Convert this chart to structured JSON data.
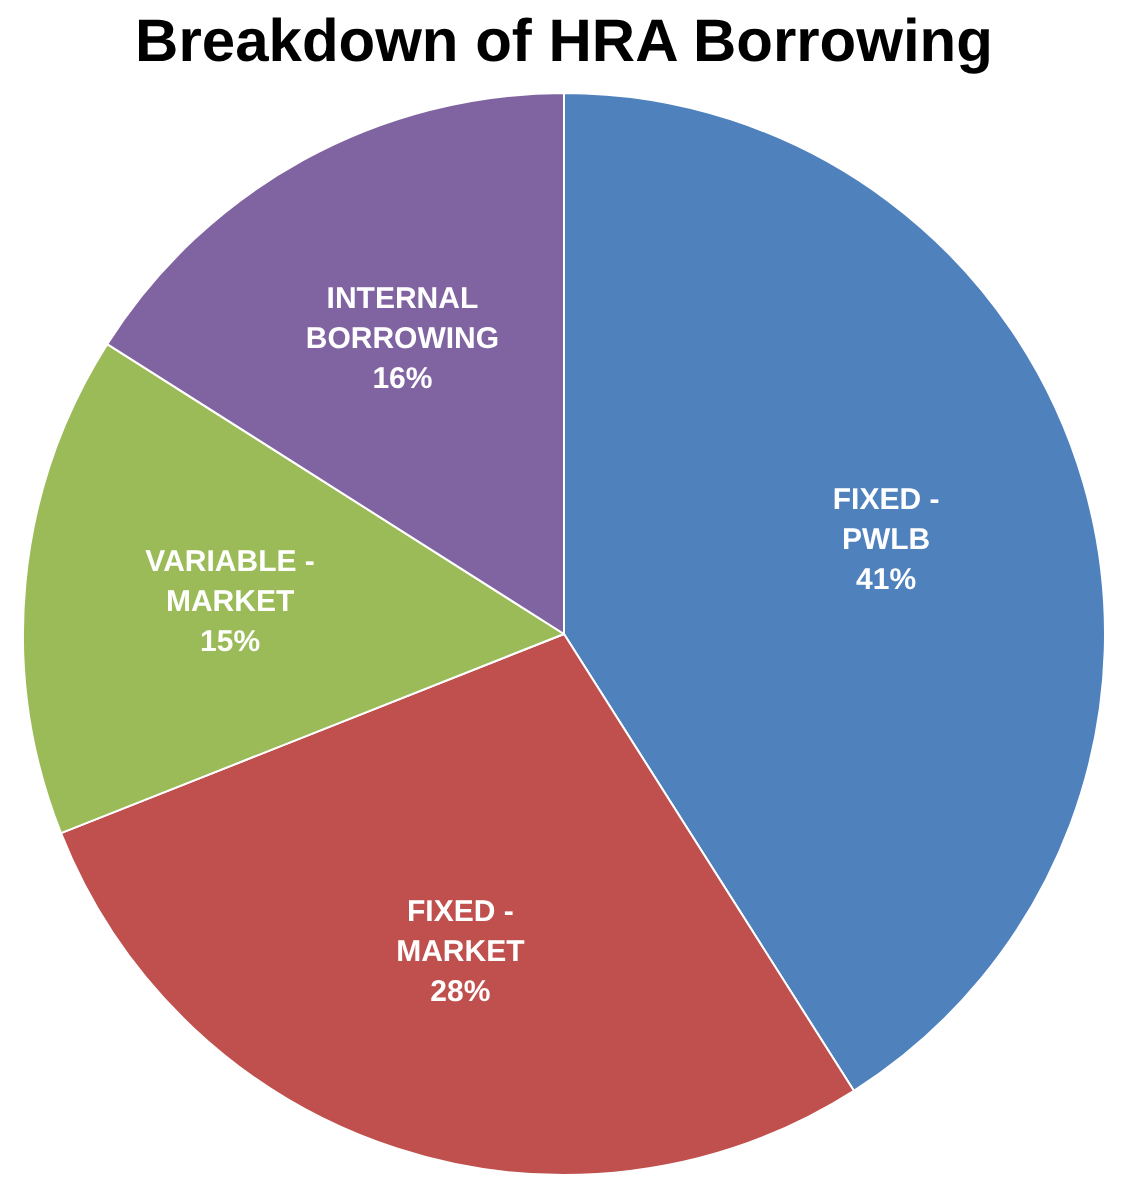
{
  "chart_data": {
    "type": "pie",
    "title": "Breakdown of HRA Borrowing",
    "categories": [
      "FIXED - PWLB",
      "FIXED - MARKET",
      "VARIABLE - MARKET",
      "INTERNAL BORROWING"
    ],
    "values": [
      41,
      28,
      15,
      16
    ],
    "colors": [
      "#4f81bd",
      "#c0504d",
      "#9bbb59",
      "#8064a2"
    ],
    "value_labels": [
      "41%",
      "28%",
      "15%",
      "16%"
    ],
    "legend": false
  }
}
